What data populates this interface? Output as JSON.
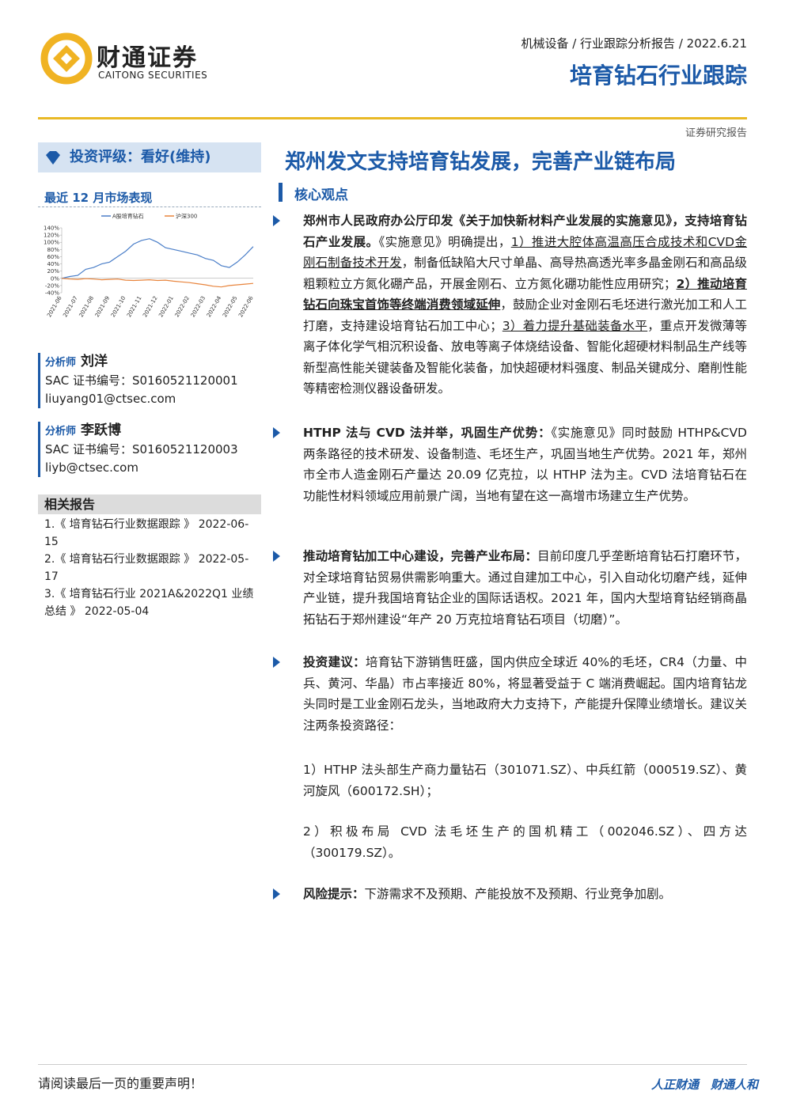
{
  "header": {
    "logo_cn": "财通证券",
    "logo_en": "CAITONG SECURITIES",
    "breadcrumb": "机械设备 / 行业跟踪分析报告 / 2022.6.21",
    "title": "培育钻石行业跟踪",
    "report_type": "证券研究报告"
  },
  "rating": "投资评级：看好(维持)",
  "main_title": "郑州发文支持培育钻发展，完善产业链布局",
  "section_title": "核心观点",
  "market_title": "最近 12 月市场表现",
  "chart_data": {
    "type": "line",
    "categories": [
      "2021-06",
      null,
      "2021-07",
      null,
      "2021-08",
      null,
      "2021-09",
      null,
      "2021-10",
      null,
      "2021-11",
      null,
      "2021-12",
      null,
      "2022-01",
      null,
      "2022-02",
      null,
      "2022-03",
      null,
      "2022-04",
      null,
      "2022-05",
      null,
      "2022-06"
    ],
    "series": [
      {
        "name": "A股培育钻石",
        "color": "#4a7ec8",
        "values": [
          0,
          5,
          8,
          25,
          30,
          40,
          45,
          60,
          75,
          95,
          105,
          110,
          100,
          85,
          80,
          75,
          70,
          65,
          55,
          50,
          35,
          30,
          45,
          65,
          88
        ]
      },
      {
        "name": "沪深300",
        "color": "#e8843c",
        "values": [
          0,
          -2,
          -3,
          -1,
          -2,
          -4,
          -3,
          -2,
          -5,
          -6,
          -5,
          -4,
          -6,
          -5,
          -8,
          -10,
          -12,
          -15,
          -18,
          -22,
          -24,
          -20,
          -18,
          -16,
          -14
        ]
      }
    ],
    "ylim": [
      -40,
      140
    ],
    "yticks": [
      {
        "value": -40,
        "label": "-40%"
      },
      {
        "value": -20,
        "label": "-20%"
      },
      {
        "value": 0,
        "label": "0%"
      },
      {
        "value": 20,
        "label": "20%"
      },
      {
        "value": 40,
        "label": "40%"
      },
      {
        "value": 60,
        "label": "60%"
      },
      {
        "value": 80,
        "label": "80%"
      },
      {
        "value": 100,
        "label": "100%"
      },
      {
        "value": 120,
        "label": "120%"
      },
      {
        "value": 140,
        "label": "140%"
      }
    ],
    "legend": "top"
  },
  "analysts": [
    {
      "role": "分析师",
      "name": "刘洋",
      "sac": "SAC 证书编号：S0160521120001",
      "email": "liuyang01@ctsec.com"
    },
    {
      "role": "分析师",
      "name": "李跃博",
      "sac": "SAC 证书编号：S0160521120003",
      "email": "liyb@ctsec.com"
    }
  ],
  "related": {
    "title": "相关报告",
    "items": [
      "1.《 培育钻石行业数据跟踪 》 2022-06-15",
      "2.《 培育钻石行业数据跟踪 》 2022-05-17",
      "3.《 培育钻石行业 2021A&2022Q1 业绩总结 》 2022-05-04"
    ]
  },
  "points": [
    {
      "parts": [
        {
          "text": "郑州市人民政府办公厅印发《关于加快新材料产业发展的实施意见》，支持培育钻石产业发展。",
          "bold": true
        },
        {
          "text": "《实施意见》明确提出，"
        },
        {
          "text": "1）推进大腔体高温高压合成技术和CVD金刚石制备技术开发",
          "underline": true
        },
        {
          "text": "，制备低缺陷大尺寸单晶、高导热高透光率多晶金刚石和高品级粗颗粒立方氮化硼产品，开展金刚石、立方氮化硼功能性应用研究；"
        },
        {
          "text": "2）推动培育钻石向珠宝首饰等终端消费领域延伸",
          "bold": true,
          "underline": true
        },
        {
          "text": "，鼓励企业对金刚石毛坯进行激光加工和人工打磨，支持建设培育钻石加工中心；"
        },
        {
          "text": "3）着力提升基础装备水平",
          "underline": true
        },
        {
          "text": "，重点开发微薄等离子体化学气相沉积设备、放电等离子体烧结设备、智能化超硬材料制品生产线等新型高性能关键装备及智能化装备，加快超硬材料强度、制品关键成分、磨削性能等精密检测仪器设备研发。"
        }
      ]
    },
    {
      "parts": [
        {
          "text": "HTHP 法与 CVD 法并举，巩固生产优势：",
          "bold": true
        },
        {
          "text": "《实施意见》同时鼓励 HTHP&CVD 两条路径的技术研发、设备制造、毛坯生产，巩固当地生产优势。2021 年，郑州市全市人造金刚石产量达 20.09 亿克拉，以 HTHP 法为主。CVD 法培育钻石在功能性材料领域应用前景广阔，当地有望在这一高增市场建立生产优势。"
        }
      ]
    },
    {
      "parts": [
        {
          "text": "推动培育钻加工中心建设，完善产业布局：",
          "bold": true
        },
        {
          "text": "目前印度几乎垄断培育钻石打磨环节，对全球培育钻贸易供需影响重大。通过自建加工中心，引入自动化切磨产线，延伸产业链，提升我国培育钻企业的国际话语权。2021 年，国内大型培育钻经销商晶拓钻石于郑州建设“年产 20 万克拉培育钻石项目（切磨）”。"
        }
      ]
    },
    {
      "parts": [
        {
          "text": "投资建议：",
          "bold": true
        },
        {
          "text": "培育钻下游销售旺盛，国内供应全球近 40%的毛坯，CR4（力量、中兵、黄河、华晶）市占率接近 80%，将显著受益于 C 端消费崛起。国内培育钻龙头同时是工业金刚石龙头，当地政府大力支持下，产能提升保障业绩增长。建议关注两条投资路径："
        }
      ],
      "sub": [
        "1）HTHP 法头部生产商力量钻石（301071.SZ）、中兵红箭（000519.SZ）、黄河旋风（600172.SH）；",
        "2）积极布局 CVD 法毛坯生产的国机精工（002046.SZ）、四方达（300179.SZ）。"
      ]
    },
    {
      "parts": [
        {
          "text": "风险提示：",
          "bold": true
        },
        {
          "text": "下游需求不及预期、产能投放不及预期、行业竞争加剧。"
        }
      ]
    }
  ],
  "footer": {
    "notice": "请阅读最后一页的重要声明！",
    "slogan": "人正财通　财通人和"
  }
}
